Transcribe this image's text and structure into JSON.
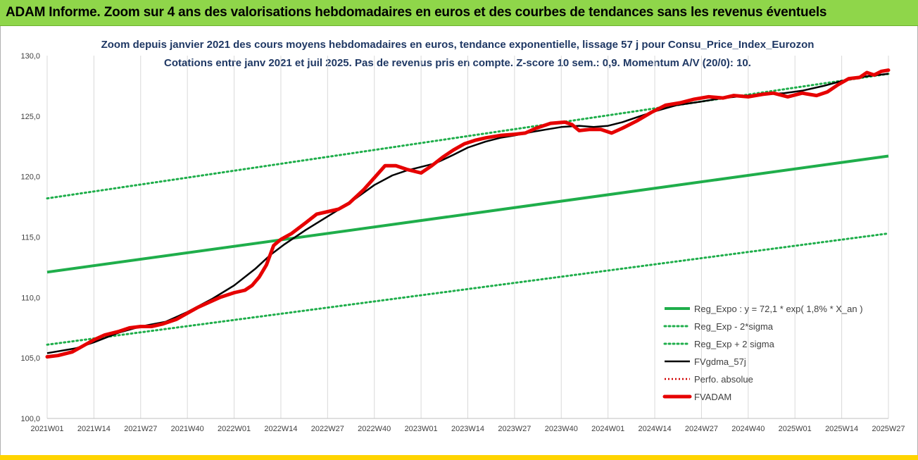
{
  "header": {
    "title": "ADAM Informe. Zoom sur 4 ans des valorisations hebdomadaires en euros et des courbes de tendances sans les revenus éventuels"
  },
  "colors": {
    "header_bg": "#8fd64a",
    "reg": "#1fae4b",
    "black": "#000000",
    "fvadam": "#e60000",
    "perfo": "#d00000",
    "title": "#1f3864"
  },
  "chart_data": {
    "type": "line",
    "title": "Zoom depuis janvier 2021 des cours moyens hebdomadaires en euros, tendance exponentielle, lissage 57 j pour Consu_Price_Index_Eurozon",
    "subtitle": "Cotations entre janv 2021 et juil 2025. Pas de revenus pris en compte. Z-score 10 sem.: 0,9. Momentum A/V (20/0): 10.",
    "xlabel": "",
    "ylabel": "",
    "ylim": [
      100,
      130
    ],
    "yticks": [
      "100,0",
      "105,0",
      "110,0",
      "115,0",
      "120,0",
      "125,0",
      "130,0"
    ],
    "xlim": [
      0,
      235
    ],
    "xticks": [
      {
        "label": "2021W01",
        "x": 0
      },
      {
        "label": "2021W14",
        "x": 13
      },
      {
        "label": "2021W27",
        "x": 26
      },
      {
        "label": "2021W40",
        "x": 39
      },
      {
        "label": "2022W01",
        "x": 52
      },
      {
        "label": "2022W14",
        "x": 65
      },
      {
        "label": "2022W27",
        "x": 78
      },
      {
        "label": "2022W40",
        "x": 91
      },
      {
        "label": "2023W01",
        "x": 104
      },
      {
        "label": "2023W14",
        "x": 117
      },
      {
        "label": "2023W27",
        "x": 130
      },
      {
        "label": "2023W40",
        "x": 143
      },
      {
        "label": "2024W01",
        "x": 156
      },
      {
        "label": "2024W14",
        "x": 169
      },
      {
        "label": "2024W27",
        "x": 182
      },
      {
        "label": "2024W40",
        "x": 195
      },
      {
        "label": "2025W01",
        "x": 208
      },
      {
        "label": "2025W14",
        "x": 221
      },
      {
        "label": "2025W27",
        "x": 234
      }
    ],
    "grid": "vertical",
    "legend_position": "bottom-right",
    "series": [
      {
        "name": "Reg_Expo : y = 72,1 * exp( 1,8% *  X_an )",
        "style": "solid-green",
        "points": [
          [
            0,
            112.1
          ],
          [
            234,
            121.7
          ]
        ]
      },
      {
        "name": "Reg_Exp - 2*sigma",
        "style": "dotted-green",
        "points": [
          [
            0,
            106.1
          ],
          [
            234,
            115.3
          ]
        ]
      },
      {
        "name": "Reg_Exp + 2 sigma",
        "style": "dotted-green",
        "points": [
          [
            0,
            118.2
          ],
          [
            234,
            128.5
          ]
        ]
      },
      {
        "name": "FVgdma_57j",
        "style": "solid-black",
        "points": [
          [
            0,
            105.4
          ],
          [
            8,
            105.8
          ],
          [
            13,
            106.3
          ],
          [
            20,
            107.1
          ],
          [
            26,
            107.6
          ],
          [
            33,
            108.0
          ],
          [
            39,
            108.8
          ],
          [
            46,
            109.9
          ],
          [
            52,
            111.0
          ],
          [
            58,
            112.4
          ],
          [
            62,
            113.5
          ],
          [
            66,
            114.4
          ],
          [
            72,
            115.6
          ],
          [
            78,
            116.7
          ],
          [
            84,
            117.8
          ],
          [
            91,
            119.3
          ],
          [
            96,
            120.1
          ],
          [
            100,
            120.5
          ],
          [
            104,
            120.8
          ],
          [
            108,
            121.1
          ],
          [
            113,
            121.8
          ],
          [
            117,
            122.4
          ],
          [
            122,
            122.9
          ],
          [
            126,
            123.2
          ],
          [
            130,
            123.4
          ],
          [
            135,
            123.7
          ],
          [
            139,
            123.9
          ],
          [
            143,
            124.1
          ],
          [
            148,
            124.2
          ],
          [
            152,
            124.1
          ],
          [
            156,
            124.2
          ],
          [
            160,
            124.5
          ],
          [
            165,
            125.0
          ],
          [
            169,
            125.4
          ],
          [
            175,
            125.9
          ],
          [
            182,
            126.2
          ],
          [
            188,
            126.5
          ],
          [
            195,
            126.7
          ],
          [
            200,
            126.8
          ],
          [
            205,
            126.9
          ],
          [
            210,
            127.1
          ],
          [
            216,
            127.5
          ],
          [
            221,
            127.9
          ],
          [
            228,
            128.3
          ],
          [
            234,
            128.5
          ]
        ]
      },
      {
        "name": "Perfo. absolue",
        "style": "dotted-red",
        "points": []
      },
      {
        "name": "FVADAM",
        "style": "thick-red",
        "points": [
          [
            0,
            105.1
          ],
          [
            3,
            105.2
          ],
          [
            7,
            105.5
          ],
          [
            10,
            106.0
          ],
          [
            13,
            106.5
          ],
          [
            16,
            106.9
          ],
          [
            20,
            107.2
          ],
          [
            23,
            107.5
          ],
          [
            26,
            107.6
          ],
          [
            29,
            107.6
          ],
          [
            32,
            107.8
          ],
          [
            36,
            108.2
          ],
          [
            39,
            108.7
          ],
          [
            42,
            109.2
          ],
          [
            45,
            109.6
          ],
          [
            48,
            110.0
          ],
          [
            52,
            110.4
          ],
          [
            55,
            110.6
          ],
          [
            57,
            111.0
          ],
          [
            59,
            111.7
          ],
          [
            61,
            112.7
          ],
          [
            63,
            114.3
          ],
          [
            65,
            114.8
          ],
          [
            68,
            115.3
          ],
          [
            72,
            116.2
          ],
          [
            75,
            116.9
          ],
          [
            78,
            117.1
          ],
          [
            81,
            117.3
          ],
          [
            84,
            117.8
          ],
          [
            88,
            118.9
          ],
          [
            91,
            119.9
          ],
          [
            94,
            120.9
          ],
          [
            97,
            120.9
          ],
          [
            100,
            120.6
          ],
          [
            104,
            120.3
          ],
          [
            107,
            120.9
          ],
          [
            110,
            121.6
          ],
          [
            113,
            122.2
          ],
          [
            116,
            122.7
          ],
          [
            119,
            123.0
          ],
          [
            122,
            123.2
          ],
          [
            126,
            123.4
          ],
          [
            130,
            123.5
          ],
          [
            133,
            123.6
          ],
          [
            136,
            124.0
          ],
          [
            140,
            124.4
          ],
          [
            144,
            124.5
          ],
          [
            146,
            124.3
          ],
          [
            148,
            123.8
          ],
          [
            151,
            123.9
          ],
          [
            154,
            123.9
          ],
          [
            157,
            123.6
          ],
          [
            160,
            124.0
          ],
          [
            164,
            124.6
          ],
          [
            168,
            125.3
          ],
          [
            172,
            125.9
          ],
          [
            176,
            126.1
          ],
          [
            180,
            126.4
          ],
          [
            184,
            126.6
          ],
          [
            188,
            126.5
          ],
          [
            191,
            126.7
          ],
          [
            195,
            126.6
          ],
          [
            199,
            126.8
          ],
          [
            202,
            126.9
          ],
          [
            206,
            126.6
          ],
          [
            210,
            126.9
          ],
          [
            214,
            126.7
          ],
          [
            217,
            127.0
          ],
          [
            220,
            127.6
          ],
          [
            223,
            128.1
          ],
          [
            226,
            128.2
          ],
          [
            228,
            128.6
          ],
          [
            230,
            128.4
          ],
          [
            232,
            128.7
          ],
          [
            234,
            128.8
          ]
        ]
      }
    ]
  }
}
